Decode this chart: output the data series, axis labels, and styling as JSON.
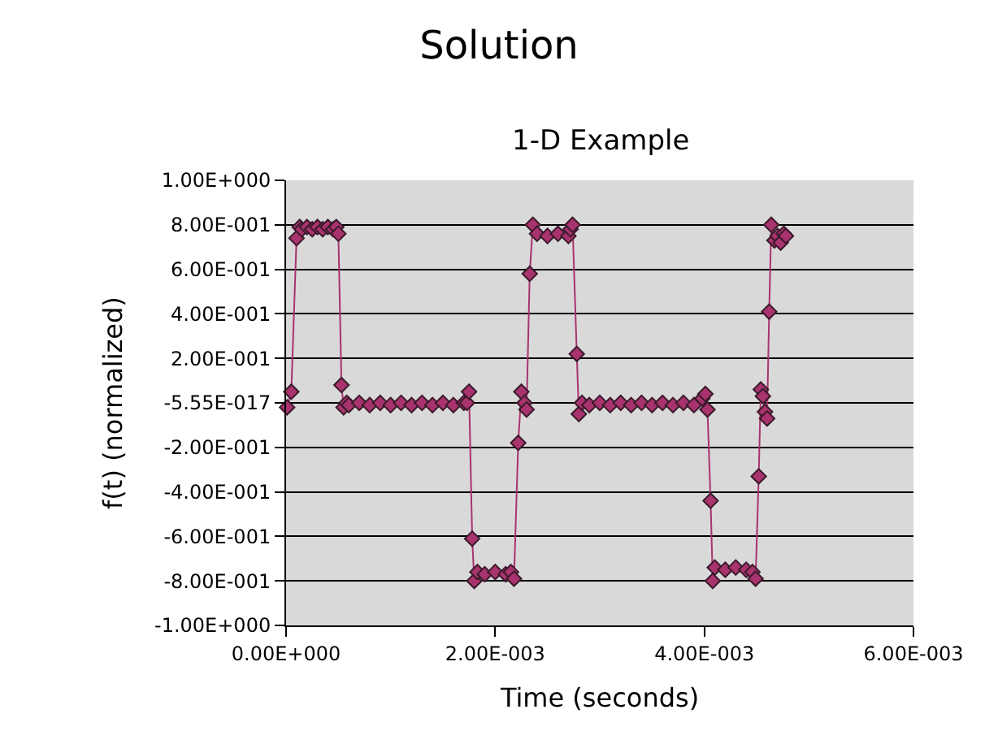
{
  "chart_data": {
    "type": "line",
    "title": "Solution",
    "subtitle": "1-D Example",
    "xlabel": "Time (seconds)",
    "ylabel": "f(t) (normalized)",
    "x": [
      1e-05,
      5e-05,
      0.0001,
      0.00013,
      0.00015,
      0.0002,
      0.00025,
      0.0003,
      0.00035,
      0.0004,
      0.00045,
      0.00048,
      0.0005,
      0.00053,
      0.00055,
      0.00058,
      0.0006,
      0.0007,
      0.0008,
      0.0009,
      0.001,
      0.0011,
      0.0012,
      0.0013,
      0.0014,
      0.0015,
      0.0016,
      0.0017,
      0.00173,
      0.00175,
      0.00178,
      0.0018,
      0.00183,
      0.0019,
      0.002,
      0.0021,
      0.00215,
      0.00218,
      0.00222,
      0.00225,
      0.00228,
      0.0023,
      0.00233,
      0.00236,
      0.0024,
      0.0025,
      0.0026,
      0.0027,
      0.00272,
      0.00274,
      0.00278,
      0.0028,
      0.00283,
      0.0029,
      0.003,
      0.0031,
      0.0032,
      0.0033,
      0.0034,
      0.0035,
      0.0036,
      0.0037,
      0.0038,
      0.0039,
      0.00398,
      0.00401,
      0.00403,
      0.00406,
      0.00408,
      0.0041,
      0.0042,
      0.0043,
      0.0044,
      0.00446,
      0.00449,
      0.00452,
      0.00454,
      0.00456,
      0.00458,
      0.0046,
      0.00462,
      0.00464,
      0.00467,
      0.0047,
      0.00473,
      0.00476,
      0.00478
    ],
    "series": [
      {
        "color": "#a8336e",
        "values": [
          -0.02,
          0.05,
          0.74,
          0.79,
          0.78,
          0.79,
          0.78,
          0.79,
          0.78,
          0.79,
          0.78,
          0.79,
          0.76,
          0.08,
          -0.02,
          0.0,
          -0.01,
          0.0,
          -0.01,
          0.0,
          -0.01,
          0.0,
          -0.01,
          0.0,
          -0.01,
          0.0,
          -0.01,
          0.0,
          0.0,
          0.05,
          -0.61,
          -0.8,
          -0.76,
          -0.77,
          -0.76,
          -0.77,
          -0.76,
          -0.79,
          -0.18,
          0.05,
          0.0,
          -0.03,
          0.58,
          0.8,
          0.76,
          0.75,
          0.76,
          0.75,
          0.78,
          0.8,
          0.22,
          -0.05,
          0.0,
          -0.01,
          0.0,
          -0.01,
          0.0,
          -0.01,
          0.0,
          -0.01,
          0.0,
          -0.01,
          0.0,
          -0.01,
          0.02,
          0.04,
          -0.03,
          -0.44,
          -0.8,
          -0.74,
          -0.75,
          -0.74,
          -0.75,
          -0.76,
          -0.79,
          -0.33,
          0.06,
          0.03,
          -0.04,
          -0.07,
          0.41,
          0.8,
          0.73,
          0.75,
          0.72,
          0.76,
          0.75
        ]
      }
    ],
    "marker": "diamond",
    "line_style": "solid",
    "grid": "y",
    "xlim": [
      0,
      0.006
    ],
    "xticks": [
      {
        "value": 0,
        "label": "0.00E+000"
      },
      {
        "value": 0.002,
        "label": "2.00E-003"
      },
      {
        "value": 0.004,
        "label": "4.00E-003"
      },
      {
        "value": 0.006,
        "label": "6.00E-003"
      }
    ],
    "ylim": [
      -1,
      1
    ],
    "yticks": [
      {
        "value": 1,
        "label": "1.00E+000"
      },
      {
        "value": 0.8,
        "label": "8.00E-001"
      },
      {
        "value": 0.6,
        "label": "6.00E-001"
      },
      {
        "value": 0.4,
        "label": "4.00E-001"
      },
      {
        "value": 0.2,
        "label": "2.00E-001"
      },
      {
        "value": 0,
        "label": "-5.55E-017"
      },
      {
        "value": -0.2,
        "label": "-2.00E-001"
      },
      {
        "value": -0.4,
        "label": "-4.00E-001"
      },
      {
        "value": -0.6,
        "label": "-6.00E-001"
      },
      {
        "value": -0.8,
        "label": "-8.00E-001"
      },
      {
        "value": -1,
        "label": "-1.00E+000"
      }
    ]
  }
}
